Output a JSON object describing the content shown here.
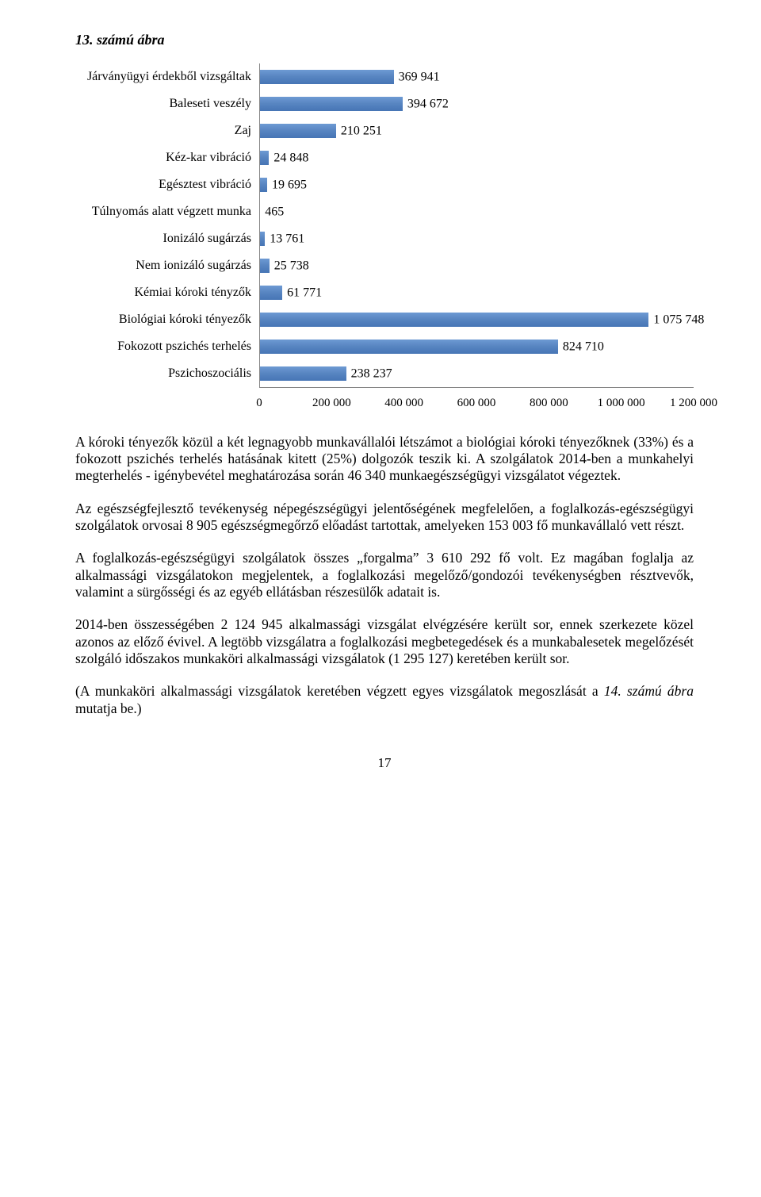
{
  "figure_title": "13. számú ábra",
  "chart": {
    "type": "bar-horizontal",
    "categories": [
      "Járványügyi érdekből vizsgáltak",
      "Baleseti veszély",
      "Zaj",
      "Kéz-kar vibráció",
      "Egésztest vibráció",
      "Túlnyomás alatt végzett munka",
      "Ionizáló sugárzás",
      "Nem ionizáló sugárzás",
      "Kémiai kóroki tényzők",
      "Biológiai kóroki tényezők",
      "Fokozott pszichés terhelés",
      "Pszichoszociális"
    ],
    "values": [
      369941,
      394672,
      210251,
      24848,
      19695,
      465,
      13761,
      25738,
      61771,
      1075748,
      824710,
      238237
    ],
    "value_labels": [
      "369 941",
      "394 672",
      "210 251",
      "24 848",
      "19 695",
      "465",
      "13 761",
      "25 738",
      "61 771",
      "1 075 748",
      "824 710",
      "238 237"
    ],
    "bar_color": "#4f81bd",
    "xlim": [
      0,
      1200000
    ],
    "xtick_positions": [
      0,
      200000,
      400000,
      600000,
      800000,
      1000000,
      1200000
    ],
    "xtick_labels": [
      "0",
      "200 000",
      "400 000",
      "600 000",
      "800 000",
      "1 000 000",
      "1 200 000"
    ],
    "label_fontsize": 16,
    "background_color": "#ffffff",
    "axis_color": "#868686"
  },
  "paragraphs": {
    "p1": "A kóroki tényezők közül a két legnagyobb munkavállalói létszámot a biológiai kóroki tényezőknek (33%) és a fokozott pszichés terhelés hatásának kitett (25%) dolgozók teszik ki. A szolgálatok 2014-ben a munkahelyi megterhelés - igénybevétel meghatározása során 46 340 munkaegészségügyi vizsgálatot végeztek.",
    "p2": "Az egészségfejlesztő tevékenység népegészségügyi jelentőségének megfelelően, a foglalkozás-egészségügyi szolgálatok orvosai 8 905 egészségmegőrző előadást tartottak, amelyeken 153 003 fő munkavállaló vett részt.",
    "p3": "A foglalkozás-egészségügyi szolgálatok összes „forgalma” 3 610 292 fő volt. Ez magában foglalja az alkalmassági vizsgálatokon megjelentek, a foglalkozási megelőző/gondozói tevékenységben résztvevők, valamint a sürgősségi és az egyéb ellátásban részesülők adatait is.",
    "p4": "2014-ben összességében 2 124 945 alkalmassági vizsgálat elvégzésére került sor, ennek szerkezete közel azonos az előző évivel. A legtöbb vizsgálatra a foglalkozási megbetegedések és a munkabalesetek megelőzését szolgáló időszakos munkaköri alkalmassági vizsgálatok (1 295 127) keretében került sor.",
    "p5_prefix": "(A munkaköri alkalmassági vizsgálatok keretében végzett egyes vizsgálatok megoszlását a ",
    "p5_italic": "14. számú ábra",
    "p5_suffix": " mutatja be.)"
  },
  "page_number": "17"
}
